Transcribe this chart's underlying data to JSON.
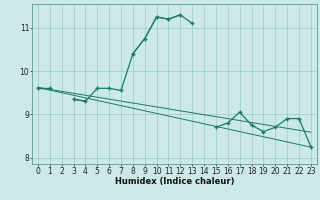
{
  "xlabel": "Humidex (Indice chaleur)",
  "background_color": "#cce8e8",
  "line_color": "#1a7a6a",
  "grid_color": "#99cccc",
  "x_values": [
    0,
    1,
    2,
    3,
    4,
    5,
    6,
    7,
    8,
    9,
    10,
    11,
    12,
    13,
    14,
    15,
    16,
    17,
    18,
    19,
    20,
    21,
    22,
    23
  ],
  "main_line": [
    9.6,
    9.6,
    null,
    9.35,
    9.3,
    9.6,
    9.6,
    9.55,
    10.4,
    10.75,
    11.25,
    11.2,
    11.3,
    11.1,
    null,
    8.7,
    8.8,
    9.05,
    8.75,
    8.6,
    8.7,
    8.9,
    8.9,
    8.25
  ],
  "line2": [
    9.6,
    9.6,
    null,
    9.35,
    9.3,
    null,
    null,
    null,
    10.4,
    10.75,
    11.25,
    11.2,
    11.3,
    null,
    null,
    null,
    null,
    null,
    null,
    null,
    null,
    null,
    null,
    null
  ],
  "trend1": [
    9.62,
    9.56,
    9.5,
    9.44,
    9.38,
    9.32,
    9.26,
    9.2,
    9.14,
    9.08,
    9.02,
    8.96,
    8.9,
    8.84,
    8.78,
    8.72,
    8.66,
    8.6,
    8.54,
    8.48,
    8.42,
    8.36,
    8.3,
    8.24
  ],
  "trend2": [
    9.62,
    9.575,
    9.53,
    9.485,
    9.44,
    9.395,
    9.35,
    9.305,
    9.26,
    9.215,
    9.17,
    9.125,
    9.08,
    9.035,
    8.99,
    8.945,
    8.9,
    8.855,
    8.81,
    8.765,
    8.72,
    8.675,
    8.63,
    8.585
  ],
  "ylim": [
    7.85,
    11.55
  ],
  "xlim": [
    -0.5,
    23.5
  ],
  "yticks": [
    8,
    9,
    10,
    11
  ],
  "xticks": [
    0,
    1,
    2,
    3,
    4,
    5,
    6,
    7,
    8,
    9,
    10,
    11,
    12,
    13,
    14,
    15,
    16,
    17,
    18,
    19,
    20,
    21,
    22,
    23
  ],
  "xlabel_fontsize": 6.0,
  "tick_fontsize": 5.5
}
